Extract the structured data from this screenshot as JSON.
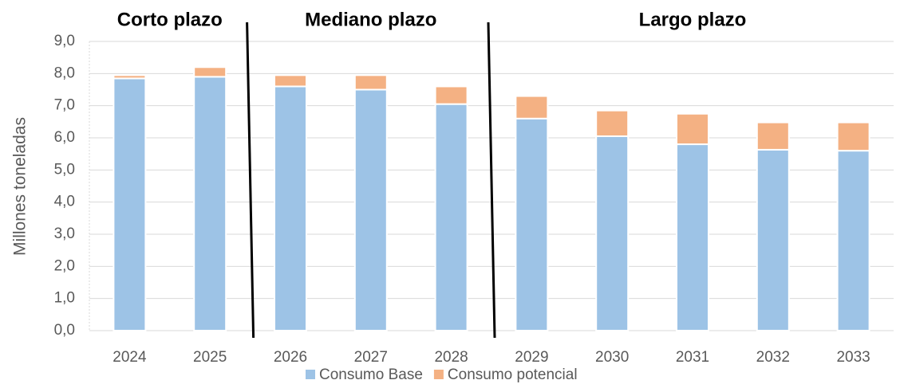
{
  "chart_data": {
    "type": "bar",
    "stacked": true,
    "y_label": "Millones toneladas",
    "annotations": [
      "Corto plazo",
      "Mediano plazo",
      "Largo plazo"
    ],
    "categories": [
      "2024",
      "2025",
      "2026",
      "2027",
      "2028",
      "2029",
      "2030",
      "2031",
      "2032",
      "2033"
    ],
    "series": [
      {
        "name": "Consumo Base",
        "color": "#9dc3e6",
        "values": [
          7.85,
          7.9,
          7.6,
          7.5,
          7.05,
          6.6,
          6.05,
          5.8,
          5.63,
          5.6
        ]
      },
      {
        "name": "Consumo potencial",
        "color": "#f4b183",
        "values": [
          0.1,
          0.3,
          0.35,
          0.45,
          0.55,
          0.7,
          0.8,
          0.95,
          0.85,
          0.88
        ]
      }
    ],
    "ylim": [
      0,
      9
    ],
    "yticks": [
      {
        "value": 0,
        "label": "0,0"
      },
      {
        "value": 1,
        "label": "1,0"
      },
      {
        "value": 2,
        "label": "2,0"
      },
      {
        "value": 3,
        "label": "3,0"
      },
      {
        "value": 4,
        "label": "4,0"
      },
      {
        "value": 5,
        "label": "5,0"
      },
      {
        "value": 6,
        "label": "6,0"
      },
      {
        "value": 7,
        "label": "7,0"
      },
      {
        "value": 8,
        "label": "8,0"
      },
      {
        "value": 9,
        "label": "9,0"
      }
    ],
    "grid": true,
    "legend": "bottom"
  }
}
